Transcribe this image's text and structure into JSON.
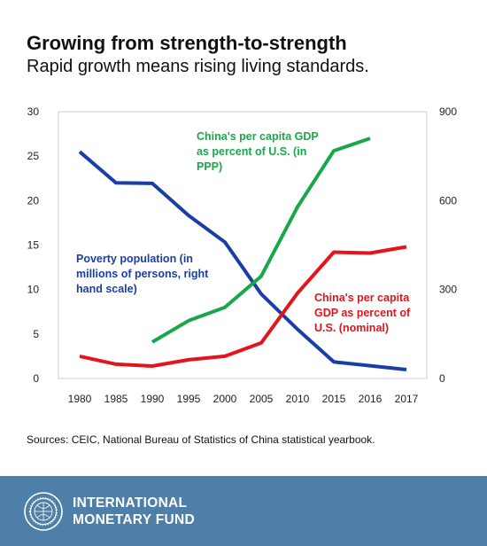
{
  "header": {
    "title": "Growing from strength-to-strength",
    "subtitle": "Rapid growth means rising living standards."
  },
  "source": "Sources: CEIC, National Bureau of Statistics of China statistical yearbook.",
  "footer": {
    "org_line1": "INTERNATIONAL",
    "org_line2": "MONETARY FUND"
  },
  "colors": {
    "poverty": "#1a3ea8",
    "ppp": "#18a84a",
    "nominal": "#e4141c",
    "footer_bg": "#4e7fa8"
  },
  "chart_data": {
    "type": "line",
    "categories": [
      "1980",
      "1985",
      "1990",
      "1995",
      "2000",
      "2005",
      "2010",
      "2015",
      "2016",
      "2017"
    ],
    "left_axis": {
      "ylim": [
        0,
        30
      ],
      "ticks": [
        "0",
        "5",
        "10",
        "15",
        "20",
        "25",
        "30"
      ]
    },
    "right_axis": {
      "ylim": [
        0,
        900
      ],
      "ticks": [
        "0",
        "300",
        "600",
        "900"
      ]
    },
    "series": [
      {
        "key": "poverty",
        "name": "Poverty population (in millions of persons, right hand scale)",
        "label_lines": [
          "Poverty population (in",
          "millions of persons, right",
          "hand scale)"
        ],
        "axis": "right",
        "color": "#1a3ea8",
        "values": [
          765,
          660,
          658,
          550,
          460,
          285,
          166,
          56,
          43,
          30
        ]
      },
      {
        "key": "ppp",
        "name": "China's per capita GDP as percent of U.S. (in PPP)",
        "label_lines": [
          "China's per capita GDP",
          "as percent of U.S. (in",
          "PPP)"
        ],
        "axis": "left",
        "color": "#18a84a",
        "values": [
          null,
          null,
          4.1,
          6.5,
          8.0,
          11.5,
          19.3,
          25.6,
          27.0,
          null
        ]
      },
      {
        "key": "nominal",
        "name": "China's per capita GDP as percent of U.S. (nominal)",
        "label_lines": [
          "China's per capita",
          "GDP as percent of",
          "U.S. (nominal)"
        ],
        "axis": "left",
        "color": "#e4141c",
        "values": [
          2.5,
          1.6,
          1.4,
          2.1,
          2.5,
          4.0,
          9.6,
          14.2,
          14.1,
          14.8
        ]
      }
    ]
  }
}
